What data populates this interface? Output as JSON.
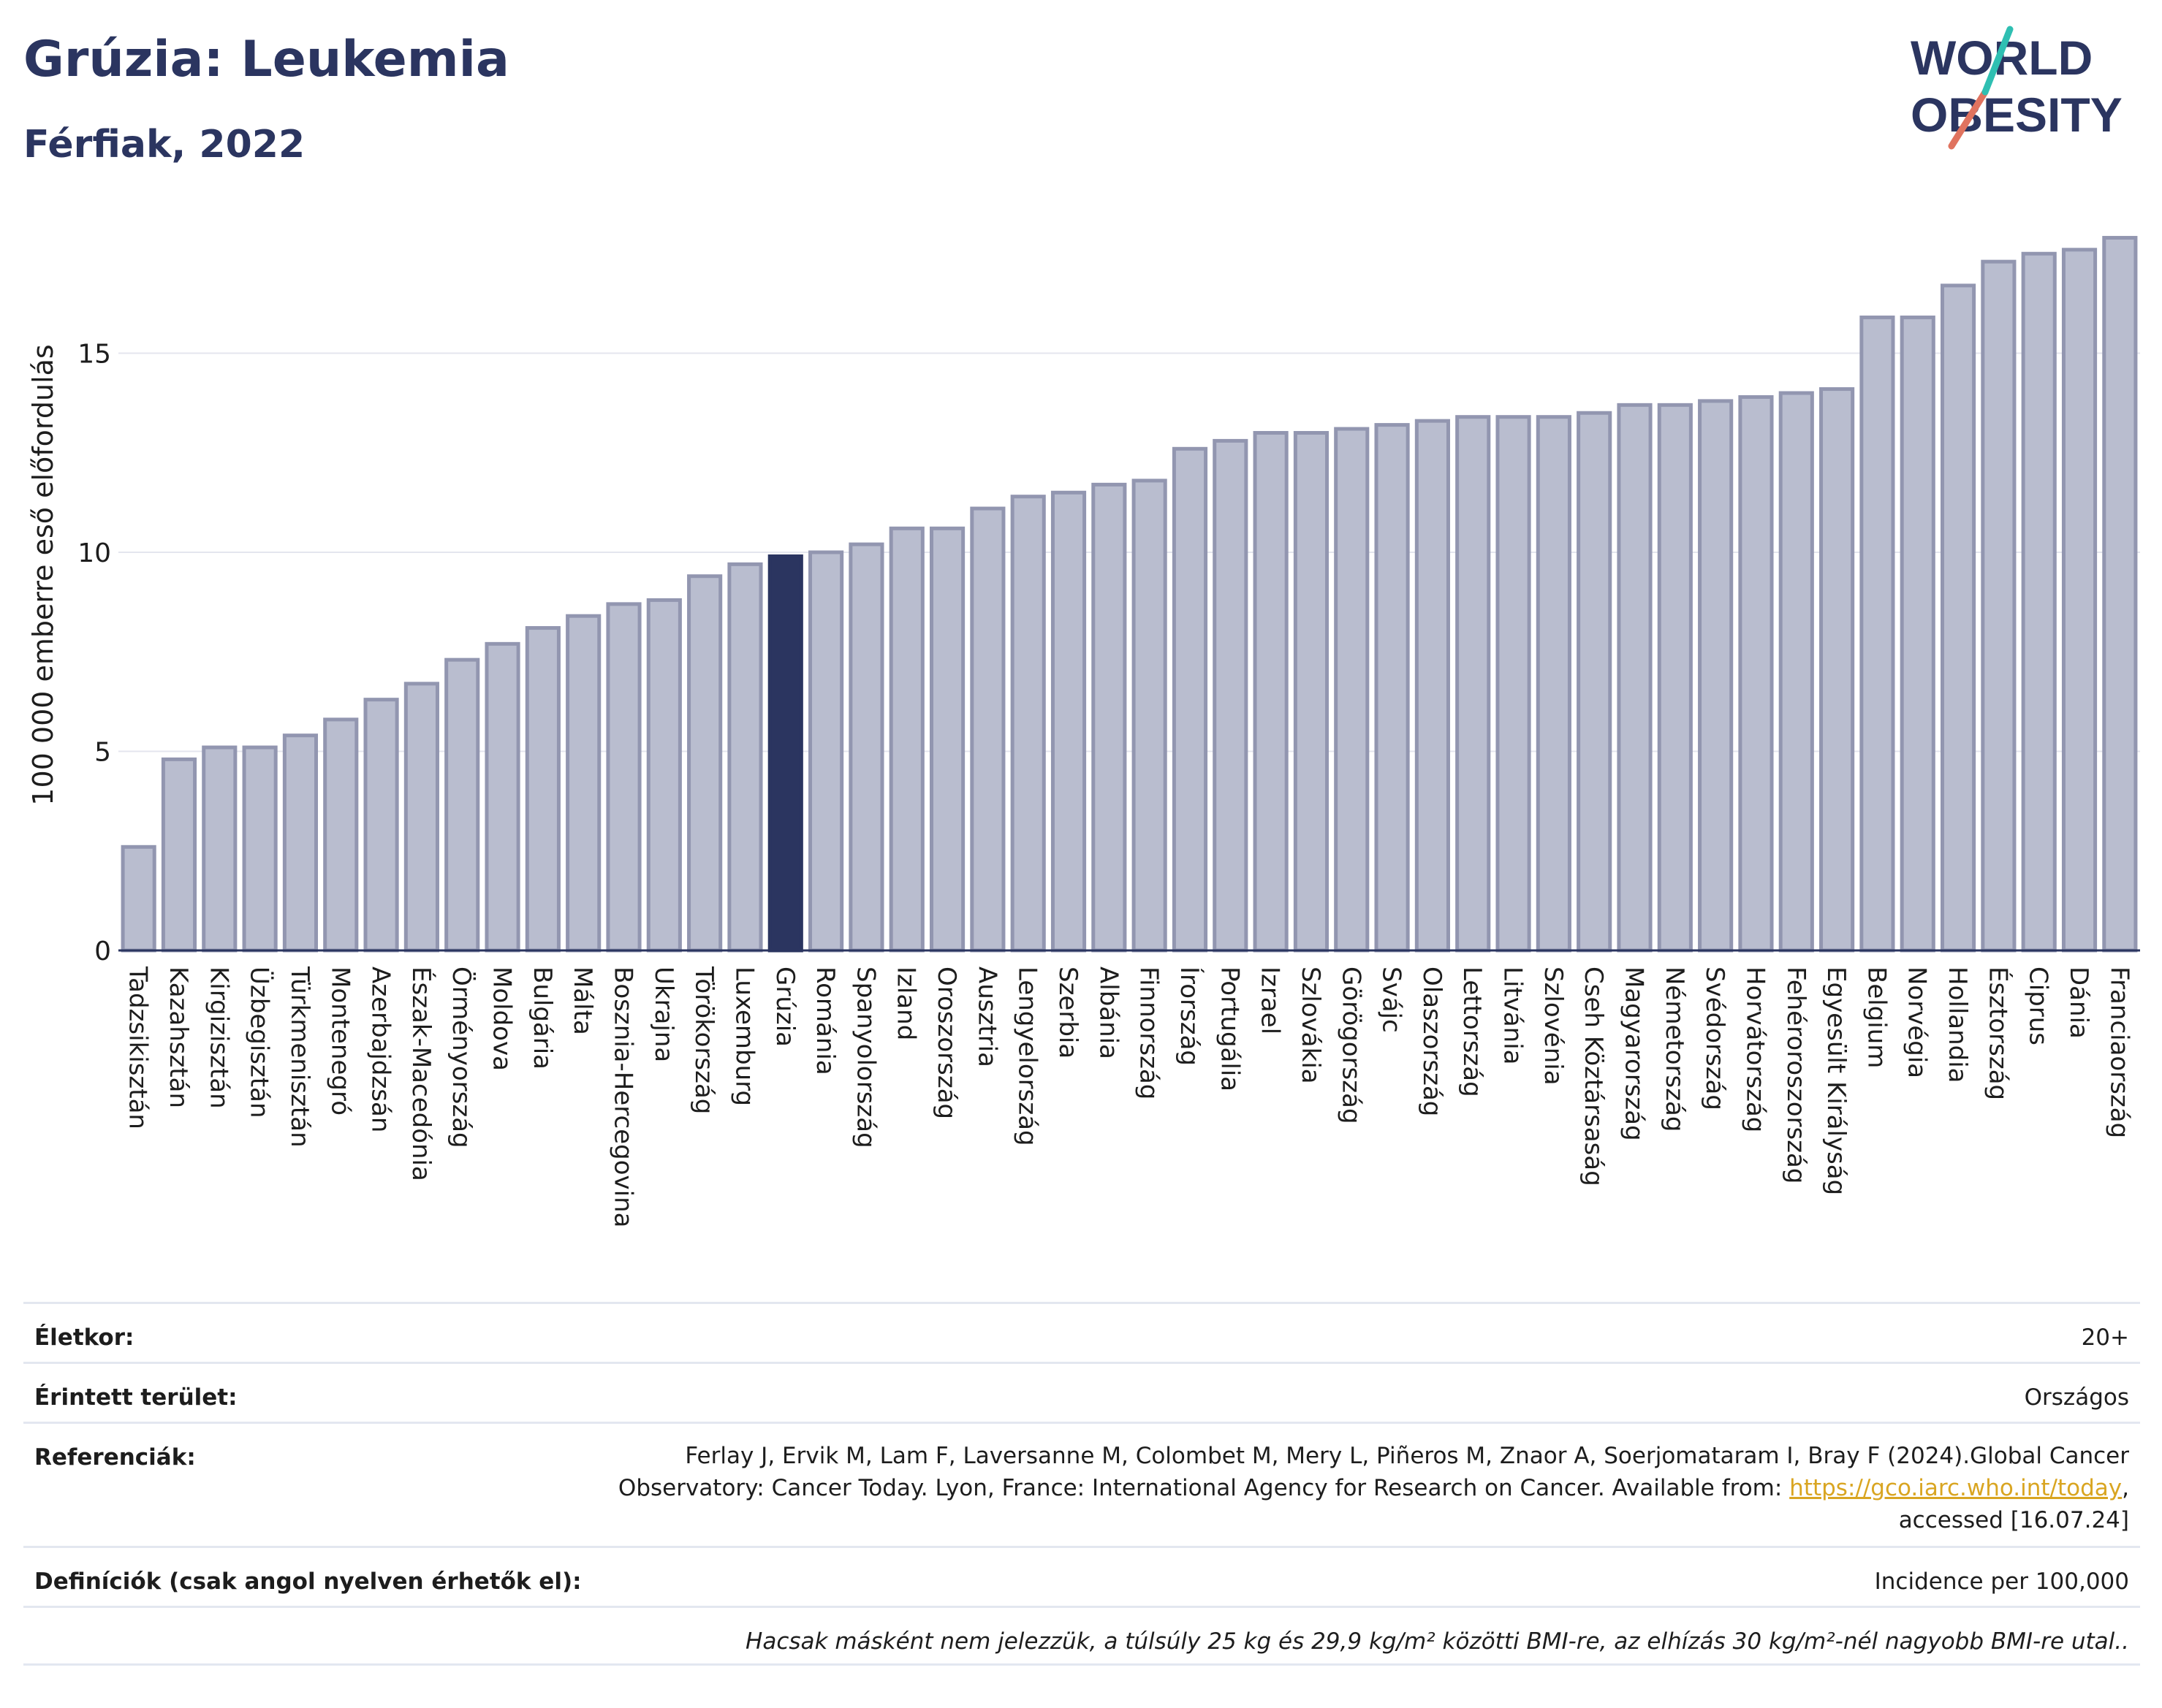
{
  "header": {
    "title": "Grúzia: Leukemia",
    "subtitle": "Férfiak, 2022",
    "logo_text_line1": "WORLD",
    "logo_text_line2": "OBESITY"
  },
  "colors": {
    "bar": "#b9bdcf",
    "bar_border": "#9296b0",
    "highlight": "#2b3560",
    "title": "#2b3560",
    "link": "#d9a521"
  },
  "chart_data": {
    "type": "bar",
    "title": "Grúzia: Leukemia",
    "subtitle": "Férfiak, 2022",
    "ylabel": "100 000 emberre eső előfordulás",
    "xlabel": "",
    "ylim": [
      0,
      18.5
    ],
    "yticks": [
      0,
      5,
      10,
      15
    ],
    "grid": true,
    "highlight": "Grúzia",
    "categories": [
      "Tadzsikisztán",
      "Kazahsztán",
      "Kirgizisztán",
      "Üzbegisztán",
      "Türkmenisztán",
      "Montenegró",
      "Azerbajdzsán",
      "Észak-Macedónia",
      "Örményország",
      "Moldova",
      "Bulgária",
      "Málta",
      "Bosznia-Hercegovina",
      "Ukrajna",
      "Törökország",
      "Luxemburg",
      "Grúzia",
      "Románia",
      "Spanyolország",
      "Izland",
      "Oroszország",
      "Ausztria",
      "Lengyelország",
      "Szerbia",
      "Albánia",
      "Finnország",
      "Írország",
      "Portugália",
      "Izrael",
      "Szlovákia",
      "Görögország",
      "Svájc",
      "Olaszország",
      "Lettország",
      "Litvánia",
      "Szlovénia",
      "Cseh Köztársaság",
      "Magyarország",
      "Németország",
      "Svédország",
      "Horvátország",
      "Fehéroroszország",
      "Egyesült Királyság",
      "Belgium",
      "Norvégia",
      "Hollandia",
      "Észtország",
      "Ciprus",
      "Dánia",
      "Franciaország"
    ],
    "values": [
      2.6,
      4.8,
      5.1,
      5.1,
      5.4,
      5.8,
      6.3,
      6.7,
      7.3,
      7.7,
      8.1,
      8.4,
      8.7,
      8.8,
      9.4,
      9.7,
      9.9,
      10.0,
      10.2,
      10.6,
      10.6,
      11.1,
      11.4,
      11.5,
      11.7,
      11.8,
      12.6,
      12.8,
      13.0,
      13.0,
      13.1,
      13.2,
      13.3,
      13.4,
      13.4,
      13.4,
      13.5,
      13.7,
      13.7,
      13.8,
      13.9,
      14.0,
      14.1,
      15.9,
      15.9,
      16.7,
      17.3,
      17.5,
      17.6,
      17.9
    ]
  },
  "meta": {
    "age_label": "Életkor:",
    "age_value": "20+",
    "area_label": "Érintett terület:",
    "area_value": "Országos",
    "ref_label": "Referenciák:",
    "ref_line1": "Ferlay J, Ervik M, Lam F, Laversanne M, Colombet M, Mery L, Piñeros M, Znaor A, Soerjomataram I, Bray F (2024).Global Cancer",
    "ref_line2": "Observatory: Cancer Today. Lyon, France: International Agency for Research on Cancer. Available from: ",
    "ref_link": "https://gco.iarc.who.int/today",
    "ref_line2_tail": ",",
    "ref_line3": "accessed [16.07.24]",
    "def_label": "Definíciók (csak angol nyelven érhetők el):",
    "def_value": "Incidence per 100,000",
    "note": "Hacsak másként nem jelezzük, a túlsúly 25 kg és 29,9 kg/m² közötti BMI-re, az elhízás 30 kg/m²-nél nagyobb BMI-re utal.."
  }
}
